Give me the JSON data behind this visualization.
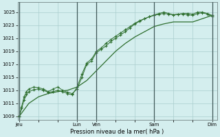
{
  "xlabel": "Pression niveau de la mer( hPa )",
  "background_color": "#d4eeee",
  "grid_color": "#aacece",
  "line_color": "#2d6e2d",
  "ylim": [
    1008.5,
    1026.5
  ],
  "yticks": [
    1009,
    1011,
    1013,
    1015,
    1017,
    1019,
    1021,
    1023,
    1025
  ],
  "day_labels": [
    "Jeu",
    "Lun",
    "Ven",
    "Sam",
    "Dim"
  ],
  "day_positions": [
    0,
    72,
    96,
    168,
    240
  ],
  "xlim": [
    0,
    246
  ],
  "total_hours": 240,
  "series1_x": [
    0,
    3,
    6,
    9,
    12,
    18,
    24,
    30,
    36,
    42,
    48,
    54,
    60,
    66,
    72,
    78,
    84,
    90,
    96,
    102,
    108,
    114,
    120,
    126,
    132,
    138,
    144,
    150,
    156,
    162,
    168,
    174,
    180,
    186,
    192,
    198,
    204,
    210,
    216,
    222,
    228,
    234,
    240
  ],
  "series1_y": [
    1009,
    1010.2,
    1011.5,
    1012.3,
    1012.8,
    1013.1,
    1013.2,
    1013.0,
    1012.7,
    1012.8,
    1013.0,
    1012.8,
    1012.5,
    1012.3,
    1013.5,
    1015.5,
    1017.2,
    1017.8,
    1019.0,
    1019.5,
    1020.2,
    1020.8,
    1021.3,
    1021.8,
    1022.3,
    1022.8,
    1023.3,
    1023.7,
    1024.0,
    1024.3,
    1024.5,
    1024.7,
    1024.8,
    1024.7,
    1024.6,
    1024.7,
    1024.8,
    1024.8,
    1024.7,
    1025.0,
    1025.0,
    1024.8,
    1024.5
  ],
  "series2_x": [
    0,
    3,
    6,
    9,
    12,
    18,
    24,
    30,
    36,
    42,
    48,
    54,
    60,
    66,
    72,
    78,
    84,
    90,
    96,
    102,
    108,
    114,
    120,
    126,
    132,
    138,
    144,
    150,
    156,
    162,
    168,
    174,
    180,
    186,
    192,
    198,
    204,
    210,
    216,
    222,
    228,
    234,
    240
  ],
  "series2_y": [
    1009,
    1010.5,
    1012.0,
    1012.8,
    1013.2,
    1013.5,
    1013.4,
    1013.2,
    1012.8,
    1013.2,
    1013.5,
    1013.0,
    1012.7,
    1012.5,
    1013.2,
    1015.0,
    1017.0,
    1017.5,
    1018.8,
    1019.3,
    1019.8,
    1020.5,
    1021.0,
    1021.5,
    1022.0,
    1022.6,
    1023.2,
    1023.6,
    1024.0,
    1024.3,
    1024.6,
    1024.8,
    1025.0,
    1024.8,
    1024.6,
    1024.7,
    1024.7,
    1024.6,
    1024.5,
    1024.8,
    1024.9,
    1024.7,
    1024.3
  ],
  "series3_x": [
    0,
    12,
    24,
    36,
    48,
    60,
    72,
    84,
    96,
    108,
    120,
    132,
    144,
    156,
    168,
    180,
    192,
    204,
    216,
    228,
    240
  ],
  "series3_y": [
    1009,
    1011.0,
    1012.0,
    1012.5,
    1012.8,
    1013.0,
    1013.5,
    1014.5,
    1016.0,
    1017.5,
    1019.0,
    1020.2,
    1021.2,
    1022.0,
    1022.8,
    1023.2,
    1023.5,
    1023.5,
    1023.5,
    1024.0,
    1024.5
  ]
}
